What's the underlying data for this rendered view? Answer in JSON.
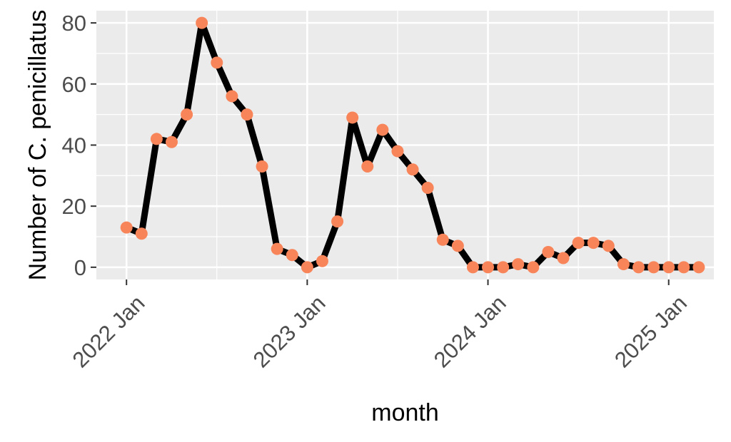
{
  "chart_data": {
    "type": "line",
    "xlabel": "month",
    "ylabel": "Number of C. penicillatus",
    "x_ticks": [
      {
        "label": "2022 Jan",
        "month": 0
      },
      {
        "label": "2023 Jan",
        "month": 12
      },
      {
        "label": "2024 Jan",
        "month": 24
      },
      {
        "label": "2025 Jan",
        "month": 36
      }
    ],
    "y_ticks": [
      0,
      20,
      40,
      60,
      80
    ],
    "ylim": [
      -4,
      84
    ],
    "xlim_months": [
      -2,
      39
    ],
    "x_start": "2022-01",
    "x_step": "1 month",
    "values": [
      13,
      11,
      42,
      41,
      50,
      80,
      67,
      56,
      50,
      33,
      6,
      4,
      0,
      2,
      15,
      49,
      33,
      45,
      38,
      32,
      26,
      9,
      7,
      0,
      0,
      0,
      1,
      0,
      5,
      3,
      8,
      8,
      7,
      1,
      0,
      0,
      0,
      0,
      0
    ],
    "line_color": "#000000",
    "point_color": "#f8855a",
    "panel_color": "#ebebeb",
    "grid": true
  }
}
